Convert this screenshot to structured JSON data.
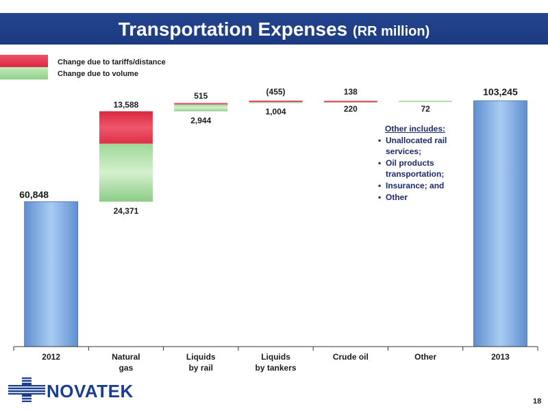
{
  "title": "Transportation Expenses",
  "title_units": "(RR million)",
  "legend": [
    {
      "label": "Change due to tariffs/distance",
      "color": "#e8344c"
    },
    {
      "label": "Change due to volume",
      "color": "#a8dca0"
    }
  ],
  "chart_data": {
    "type": "bar",
    "subtype": "waterfall",
    "categories": [
      "2012",
      "Natural\ngas",
      "Liquids\nby rail",
      "Liquids\nby tankers",
      "Crude oil",
      "Other",
      "2013"
    ],
    "totals": {
      "2012": 60848,
      "2013": 103245
    },
    "series": [
      {
        "name": "Change due to volume",
        "values": [
          null,
          24371,
          2944,
          1004,
          220,
          72,
          null
        ]
      },
      {
        "name": "Change due to tariffs/distance",
        "values": [
          null,
          13588,
          515,
          -455,
          138,
          null,
          null
        ]
      }
    ],
    "labels": {
      "2012": "60,848",
      "2013": "103,245",
      "natural_gas_tariff": "13,588",
      "natural_gas_volume": "24,371",
      "rail_tariff": "515",
      "rail_volume": "2,944",
      "tankers_tariff": "(455)",
      "tankers_volume": "1,004",
      "crude_tariff": "138",
      "crude_volume": "220",
      "other_volume": "72"
    },
    "ylim": [
      0,
      103245
    ],
    "colors": {
      "total": "#8ab4e8",
      "tariff": "#e8344c",
      "volume": "#a8dca0"
    }
  },
  "note": {
    "heading": "Other includes:",
    "items": [
      "Unallocated rail services;",
      "Oil products transportation;",
      "Insurance; and",
      "Other"
    ]
  },
  "logo_text": "NOVATEK",
  "page_number": "18"
}
